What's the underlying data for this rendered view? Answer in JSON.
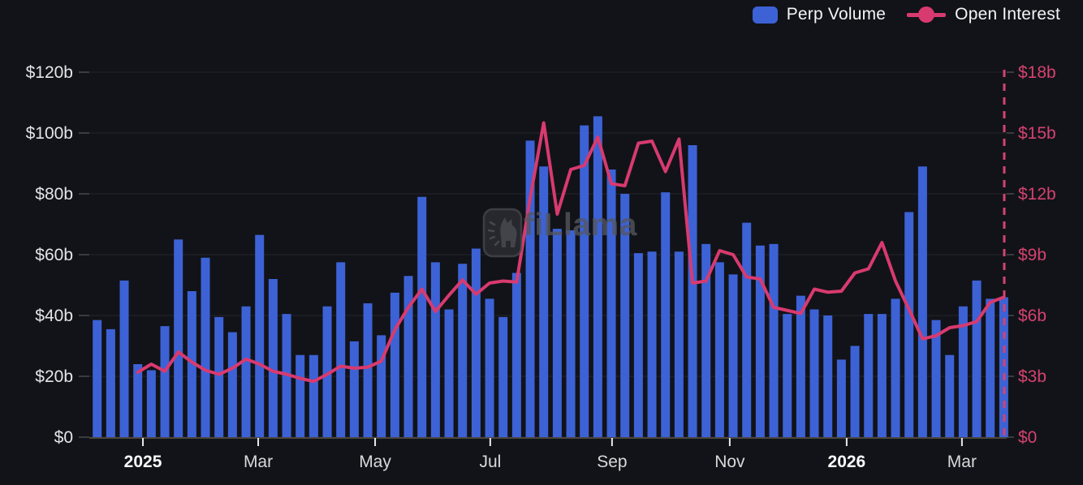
{
  "page": {
    "background": "#121318"
  },
  "legend": {
    "items": [
      {
        "label": "Perp Volume",
        "marker": "bar-swatch",
        "color": "#3c62d6"
      },
      {
        "label": "Open Interest",
        "marker": "line-dot",
        "color": "#d83a6f"
      }
    ]
  },
  "watermark": {
    "text": "DefiLlama"
  },
  "left_axis": {
    "tick_labels": [
      "$120b",
      "$100b",
      "$80b",
      "$60b",
      "$40b",
      "$20b",
      "$0"
    ],
    "min": 0,
    "max": 120,
    "unit": "$b",
    "color": "#e4e5e8"
  },
  "right_axis": {
    "tick_labels": [
      "$18b",
      "$15b",
      "$12b",
      "$9b",
      "$6b",
      "$3b",
      "$0"
    ],
    "min": 0,
    "max": 18,
    "unit": "$b",
    "color": "#d5426f"
  },
  "x_axis": {
    "labels": [
      {
        "text": "2025",
        "bold": true,
        "pos": 3.38
      },
      {
        "text": "Mar",
        "bold": false,
        "pos": 11.9
      },
      {
        "text": "May",
        "bold": false,
        "pos": 20.54
      },
      {
        "text": "Jul",
        "bold": false,
        "pos": 29.05
      },
      {
        "text": "Sep",
        "bold": false,
        "pos": 38.05
      },
      {
        "text": "Nov",
        "bold": false,
        "pos": 46.75
      },
      {
        "text": "2026",
        "bold": true,
        "pos": 55.39
      },
      {
        "text": "Mar",
        "bold": false,
        "pos": 63.91
      }
    ]
  },
  "chart_data": {
    "type": "bar",
    "subtype": "bar+line combo, weekly buckets",
    "title": "",
    "grid": true,
    "legend_position": "top-right",
    "left_axis_range": [
      0,
      120
    ],
    "right_axis_range": [
      0,
      18
    ],
    "end_marker": {
      "style": "dashed-vertical-line",
      "color": "#d5426f",
      "at": "last bar"
    },
    "series": [
      {
        "name": "Perp Volume",
        "type": "bar",
        "axis": "left",
        "unit": "$b",
        "color": "#3c62d6",
        "values": [
          38.5,
          35.5,
          51.5,
          24,
          22,
          36.5,
          65,
          48,
          59,
          39.5,
          34.5,
          43,
          66.5,
          52,
          40.5,
          27,
          27,
          43,
          57.5,
          31.5,
          44,
          33.5,
          47.5,
          53,
          79,
          57.5,
          42,
          57,
          62,
          45.5,
          39.5,
          54,
          97.5,
          89,
          68.5,
          68,
          102.5,
          105.5,
          88,
          80,
          60.5,
          61,
          80.5,
          61,
          96,
          63.5,
          57.5,
          53.5,
          70.5,
          63,
          63.5,
          40.5,
          46.5,
          42,
          40,
          25.5,
          30,
          40.5,
          40.5,
          45.5,
          74,
          89,
          38.5,
          27,
          43,
          51.5,
          45.5,
          46
        ]
      },
      {
        "name": "Open Interest",
        "type": "line",
        "axis": "right",
        "unit": "$b",
        "color": "#d83a6f",
        "values": [
          null,
          null,
          null,
          3.2,
          3.6,
          3.25,
          4.2,
          3.7,
          3.3,
          3.1,
          3.4,
          3.85,
          3.6,
          3.25,
          3.1,
          2.9,
          2.75,
          3.1,
          3.5,
          3.4,
          3.45,
          3.75,
          5.3,
          6.4,
          7.3,
          6.2,
          7.0,
          7.75,
          7.05,
          7.6,
          7.7,
          7.65,
          11.8,
          15.5,
          11.0,
          13.2,
          13.4,
          14.8,
          12.5,
          12.4,
          14.5,
          14.6,
          13.1,
          14.7,
          7.6,
          7.7,
          9.2,
          9.0,
          7.9,
          7.8,
          6.4,
          6.25,
          6.1,
          7.3,
          7.15,
          7.2,
          8.1,
          8.3,
          9.6,
          7.7,
          6.3,
          4.85,
          5.0,
          5.4,
          5.5,
          5.7,
          6.65,
          6.9
        ]
      }
    ],
    "colors": {
      "background": "#121318",
      "gridline": "#24262b",
      "zero_axis_line": "#4a473f",
      "x_tick": "#e9e9ea",
      "x_label": "#d8d9db",
      "x_label_year": "#fafafa"
    }
  }
}
